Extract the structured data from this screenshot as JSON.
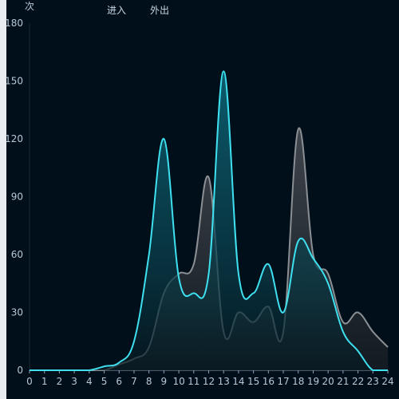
{
  "chart_data": {
    "type": "area",
    "y_unit": "次",
    "x": [
      0,
      1,
      2,
      3,
      4,
      5,
      6,
      7,
      8,
      9,
      10,
      11,
      12,
      13,
      14,
      15,
      16,
      17,
      18,
      19,
      20,
      21,
      22,
      23,
      24
    ],
    "x_tick_labels": [
      "0",
      "1",
      "2",
      "3",
      "4",
      "5",
      "6",
      "7",
      "8",
      "9",
      "10",
      "11",
      "12",
      "13",
      "14",
      "15",
      "16",
      "17",
      "18",
      "19",
      "20",
      "21",
      "22",
      "23",
      "24"
    ],
    "y_ticks": [
      0,
      30,
      60,
      90,
      120,
      150,
      180
    ],
    "ylim": [
      0,
      180
    ],
    "grid": false,
    "legend": "top-left",
    "series": [
      {
        "name": "进入",
        "color": "#3ee0ef",
        "values": [
          0,
          0,
          0,
          0,
          0,
          2,
          4,
          15,
          60,
          120,
          48,
          40,
          50,
          155,
          50,
          40,
          55,
          30,
          67,
          58,
          45,
          20,
          10,
          0,
          0
        ]
      },
      {
        "name": "外出",
        "color": "#8a8f94",
        "values": [
          0,
          0,
          0,
          0,
          0,
          0,
          3,
          6,
          12,
          40,
          50,
          55,
          100,
          20,
          30,
          25,
          33,
          20,
          125,
          60,
          50,
          25,
          30,
          20,
          12
        ]
      }
    ]
  }
}
